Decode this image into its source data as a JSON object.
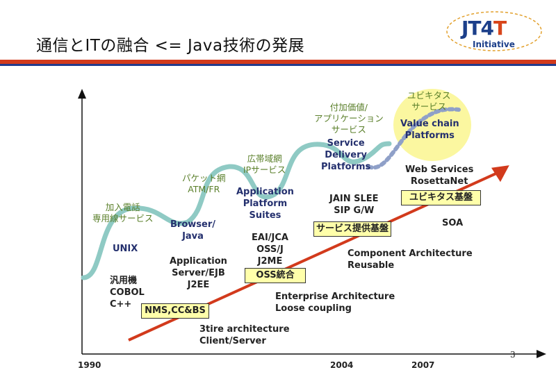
{
  "title": "通信とITの融合 <= Java技術の発展",
  "logo": {
    "main_prefix": "JT4",
    "main_suffix": "T",
    "sub": "Initiative"
  },
  "page_number": "3",
  "years": [
    "1990",
    "2004",
    "2007"
  ],
  "stages": [
    {
      "jp": [
        "加入電話",
        "専用線サービス"
      ],
      "en": [
        "UNIX"
      ]
    },
    {
      "jp": [
        "パケット網",
        "ATM/FR"
      ],
      "en": [
        "Browser/",
        "Java"
      ]
    },
    {
      "jp": [
        "広帯域網",
        "IPサービス"
      ],
      "en": [
        "Application",
        "Platform",
        "Suites"
      ]
    },
    {
      "jp": [
        "付加価値/",
        "アプリケーション",
        "サービス"
      ],
      "en": [
        "Service",
        "Delivery",
        "Platforms"
      ]
    },
    {
      "jp": [
        "ユビキタス",
        "サービス"
      ],
      "en": [
        "Value chain",
        "Platforms"
      ]
    }
  ],
  "tech": {
    "legacy": [
      "汎用機",
      "COBOL",
      "C++"
    ],
    "appserver": [
      "Application",
      "Server/EJB",
      "J2EE"
    ],
    "eai": [
      "EAI/JCA",
      "OSS/J",
      "J2ME"
    ],
    "jain": [
      "JAIN SLEE",
      "SIP G/W"
    ],
    "web": [
      "Web Services",
      "RosettaNet"
    ],
    "soa": "SOA"
  },
  "platform_boxes": {
    "nms": "NMS,CC&BS",
    "oss": "OSS統合",
    "service": "サービス提供基盤",
    "ubiquitous": "ユビキタス基盤"
  },
  "architectures": {
    "tier": [
      "3tire architecture",
      "Client/Server"
    ],
    "enterprise": [
      "Enterprise Architecture",
      "Loose coupling"
    ],
    "component": [
      "Component Architecture",
      "Reusable"
    ]
  },
  "colors": {
    "accent_red": "#d23a1c",
    "navy": "#233a8c",
    "teal_wave": "#8fcac4",
    "box_yellow": "#ffffaa",
    "ellipse_yellow": "#fbf7a0"
  }
}
